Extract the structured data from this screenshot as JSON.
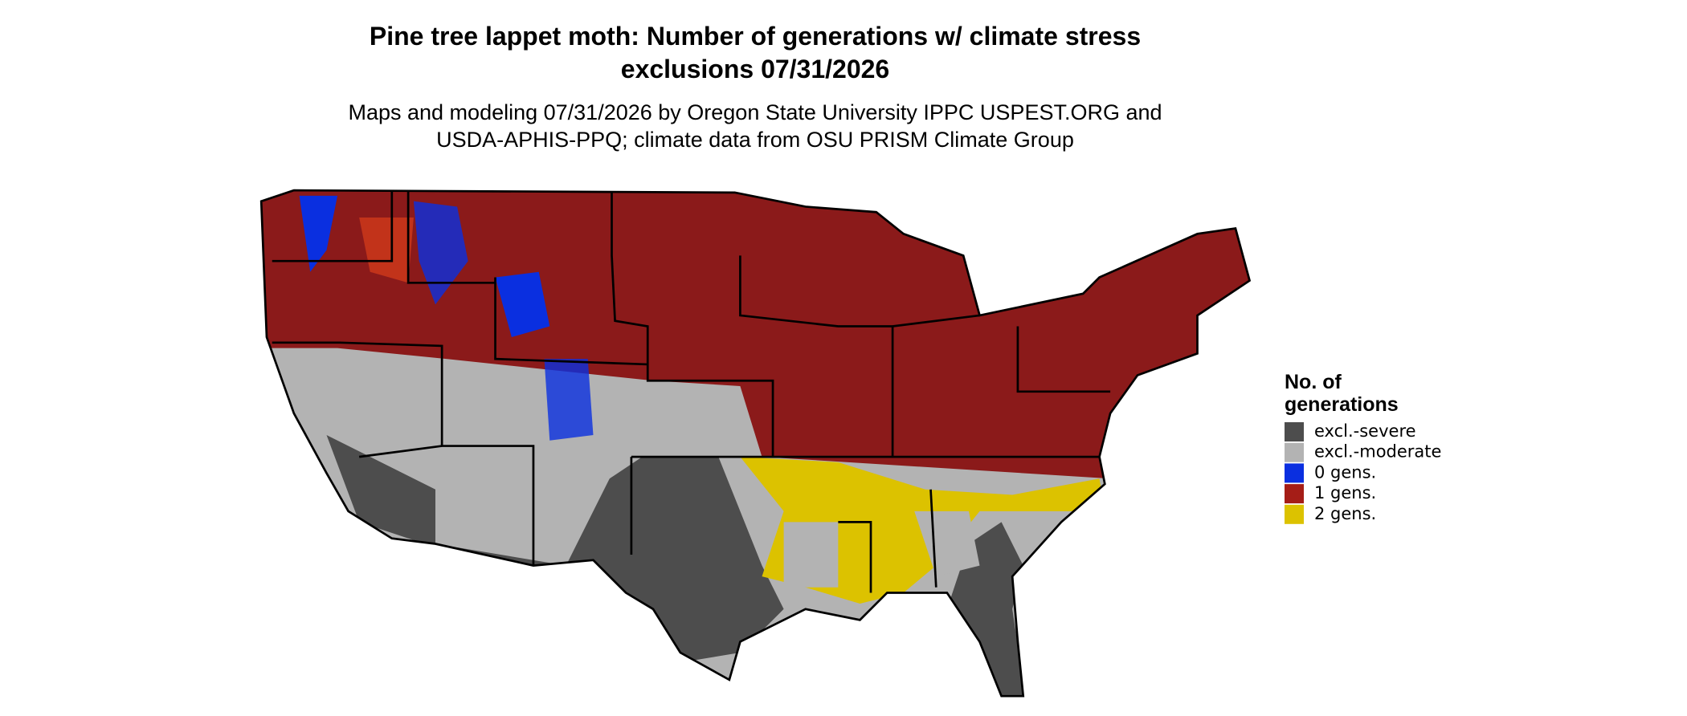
{
  "title": [
    "Pine tree lappet moth: Number of generations w/ climate stress",
    "exclusions 07/31/2026"
  ],
  "subtitle": [
    "Maps and modeling 07/31/2026 by Oregon State University IPPC USPEST.ORG and",
    "USDA-APHIS-PPQ; climate data from OSU PRISM Climate Group"
  ],
  "legend": {
    "title": [
      "No. of",
      "generations"
    ],
    "items": [
      {
        "label": "excl.-severe",
        "color": "#4d4d4d"
      },
      {
        "label": "excl.-moderate",
        "color": "#b3b3b3"
      },
      {
        "label": "0 gens.",
        "color": "#0a2fe0"
      },
      {
        "label": "1 gens.",
        "color": "#a51d17"
      },
      {
        "label": "2 gens.",
        "color": "#dcc200"
      }
    ]
  }
}
